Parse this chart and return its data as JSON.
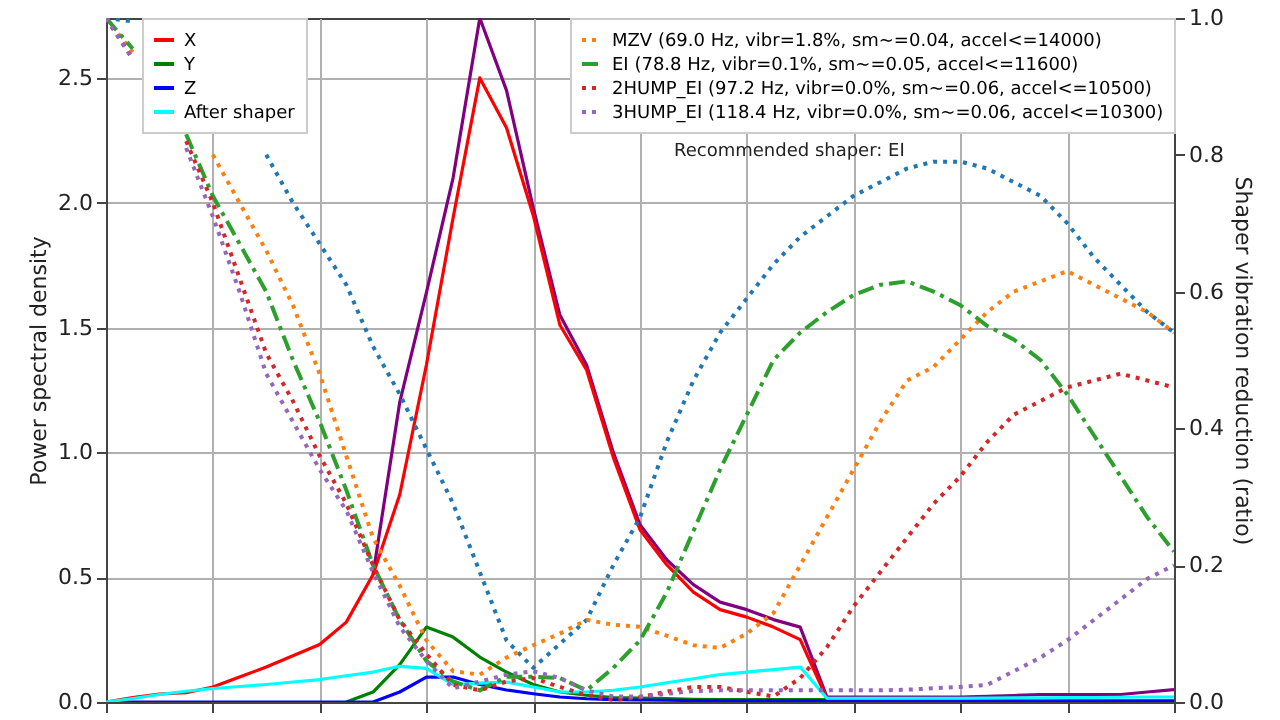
{
  "chart_data": {
    "type": "line",
    "ylabel": "Power spectral density",
    "y2label": "Shaper vibration reduction (ratio)",
    "categories": [
      null,
      null,
      null,
      null,
      null,
      null,
      null,
      null,
      null,
      null,
      null,
      null,
      null,
      null,
      null,
      null,
      null,
      null,
      null,
      null,
      null,
      null,
      null,
      null,
      null,
      null,
      null,
      null,
      null,
      null,
      null,
      null,
      null,
      null,
      null,
      null,
      null,
      null,
      null,
      null,
      null
    ],
    "ylim": [
      0,
      2.74
    ],
    "yticks": [
      {
        "value": 0,
        "label": "0.0"
      },
      0.5,
      {
        "value": 1,
        "label": "1.0"
      },
      1.5,
      {
        "value": 2,
        "label": "2.0"
      },
      2.5
    ],
    "y2lim": [
      0,
      1.0
    ],
    "y2ticks": [
      {
        "value": 0,
        "label": "0.0"
      },
      0.2,
      0.4,
      0.6,
      0.8,
      {
        "value": 1,
        "label": "1.0"
      }
    ],
    "grid": true,
    "legend": "top left",
    "tick_labels": "y",
    "line_style": "solid",
    "annotations": [
      "Recommended shaper: EI"
    ],
    "series": [
      {
        "color": "#800080",
        "values": [
          null,
          null,
          null,
          null,
          null,
          null,
          null,
          null,
          null,
          null,
          0.51,
          1.2,
          1.64,
          2.1,
          2.74,
          2.45,
          1.98,
          1.55,
          1.35,
          1.0,
          0.71,
          0.57,
          0.47,
          0.4,
          0.37,
          0.33,
          0.3,
          0.02,
          0.02,
          0.02,
          0.02,
          0.02,
          0.02,
          0.023,
          0.026,
          0.03,
          0.03,
          0.03,
          0.03,
          0.04,
          0.05
        ]
      },
      {
        "name": "X",
        "color": "#ff0000",
        "values": [
          0,
          0.018,
          0.032,
          0.037,
          0.06,
          0.1,
          0.14,
          0.185,
          0.23,
          0.32,
          0.51,
          0.83,
          1.35,
          1.94,
          2.5,
          2.3,
          1.95,
          1.51,
          1.33,
          0.98,
          0.69,
          0.55,
          0.44,
          0.37,
          0.34,
          0.3,
          0.25,
          0.014,
          null,
          null,
          null,
          null,
          null,
          null,
          null,
          null,
          null,
          null,
          null,
          null,
          null
        ]
      },
      {
        "name": "Y",
        "color": "#008000",
        "values": [
          null,
          null,
          null,
          null,
          null,
          null,
          null,
          null,
          null,
          0,
          0.04,
          0.15,
          0.3,
          0.26,
          0.18,
          0.12,
          0.07,
          0.04,
          0.027,
          0.018,
          0.016,
          0.014,
          0.011,
          0.01,
          0.01,
          0.01,
          0.01,
          0.01,
          null,
          null,
          null,
          null,
          null,
          null,
          null,
          null,
          null,
          null,
          null,
          null,
          null
        ]
      },
      {
        "name": "Z",
        "color": "#0000ff",
        "values": [
          0,
          0,
          0,
          0,
          0,
          0,
          0,
          0,
          0,
          0,
          0,
          0.04,
          0.1,
          0.1,
          0.07,
          0.048,
          0.033,
          0.02,
          0.013,
          0.009,
          0.008,
          0.007,
          0.006,
          0.005,
          0.005,
          0.005,
          0.005,
          0.005,
          0.005,
          0.005,
          0.005,
          0.005,
          0.005,
          0.005,
          0.005,
          0.005,
          0.005,
          0.005,
          0.005,
          0.005,
          0.005
        ]
      },
      {
        "name": "After\nshaper",
        "color": "#00ffff",
        "values": [
          0,
          0.014,
          0.03,
          0.043,
          0.054,
          0.062,
          0.07,
          0.08,
          0.09,
          0.105,
          0.12,
          0.143,
          0.135,
          0.07,
          0.076,
          0.08,
          0.06,
          0.04,
          0.04,
          0.047,
          0.06,
          0.077,
          0.093,
          0.11,
          0.12,
          0.13,
          0.14,
          0.015,
          0.015,
          0.015,
          0.015,
          0.015,
          0.015,
          0.016,
          0.017,
          0.017,
          0.018,
          0.018,
          0.019,
          0.02,
          0.02
        ]
      },
      {
        "color": "#1f77b4",
        "axis": "y2",
        "line_style": "dotted",
        "values": [
          1.0,
          0.995,
          null,
          null,
          null,
          null,
          0.8,
          0.73,
          0.67,
          0.61,
          0.52,
          0.45,
          0.37,
          0.29,
          0.19,
          0.09,
          0.05,
          0.085,
          0.12,
          0.2,
          0.27,
          0.38,
          0.47,
          0.54,
          0.59,
          0.64,
          0.68,
          0.71,
          0.74,
          0.76,
          0.78,
          0.79,
          0.79,
          0.78,
          0.76,
          0.74,
          0.7,
          0.65,
          0.61,
          0.57,
          0.54
        ]
      },
      {
        "name": "MZV (69.0 Hz, vibr=1.8%, sm~=0.04, accel<=14000)",
        "color": "#ff7f0e",
        "axis": "y2",
        "line_style": "dotted",
        "values": [
          1.0,
          0.95,
          null,
          null,
          0.8,
          0.73,
          0.66,
          0.58,
          0.48,
          0.36,
          0.24,
          0.17,
          0.09,
          0.045,
          0.04,
          0.065,
          0.083,
          0.1,
          0.12,
          0.113,
          0.11,
          0.097,
          0.083,
          0.079,
          0.1,
          0.13,
          0.2,
          0.27,
          0.34,
          0.41,
          0.47,
          0.49,
          0.53,
          0.57,
          0.6,
          0.615,
          0.63,
          0.61,
          0.59,
          0.57,
          0.54
        ]
      },
      {
        "name": "EI (78.8 Hz, vibr=0.1%, sm~=0.05, accel<=11600)",
        "color": "#2ca02c",
        "axis": "y2",
        "line_style": "dashdot",
        "values": [
          1.0,
          0.955,
          null,
          0.83,
          0.74,
          0.67,
          0.6,
          0.5,
          0.41,
          0.31,
          0.2,
          0.12,
          0.06,
          0.03,
          0.017,
          0.037,
          0.037,
          0.035,
          0.017,
          0.05,
          0.09,
          0.16,
          0.25,
          0.34,
          0.42,
          0.5,
          0.54,
          0.57,
          0.595,
          0.61,
          0.615,
          0.6,
          0.58,
          0.55,
          0.53,
          0.5,
          0.45,
          0.39,
          0.33,
          0.27,
          0.22
        ]
      },
      {
        "name": "2HUMP_EI (97.2 Hz, vibr=0.0%, sm~=0.06, accel<=10500)",
        "color": "#d62728",
        "axis": "y2",
        "line_style": "dotted",
        "values": [
          1.0,
          0.94,
          null,
          0.82,
          0.73,
          0.62,
          0.51,
          0.44,
          0.36,
          0.29,
          0.2,
          0.12,
          0.07,
          0.025,
          0.017,
          0.03,
          0.035,
          0.022,
          0.01,
          0.003,
          0.007,
          0.015,
          0.022,
          0.022,
          0.015,
          0.008,
          0.035,
          0.08,
          0.14,
          0.19,
          0.24,
          0.29,
          0.33,
          0.38,
          0.42,
          0.44,
          0.46,
          0.47,
          0.48,
          0.47,
          0.46
        ]
      },
      {
        "name": "3HUMP_EI (118.4 Hz, vibr=0.0%, sm~=0.06, accel<=10300)",
        "color": "#9467bd",
        "axis": "y2",
        "line_style": "dotted",
        "values": [
          1.0,
          0.94,
          null,
          0.81,
          0.71,
          0.6,
          0.48,
          0.41,
          0.34,
          0.28,
          0.19,
          0.11,
          0.06,
          0.02,
          0.03,
          0.04,
          0.045,
          0.035,
          0.017,
          0.008,
          0.008,
          0.012,
          0.016,
          0.017,
          0.017,
          0.017,
          0.017,
          0.017,
          0.017,
          0.017,
          0.018,
          0.02,
          0.022,
          0.025,
          0.045,
          0.065,
          0.09,
          0.12,
          0.15,
          0.18,
          0.2
        ]
      }
    ]
  }
}
